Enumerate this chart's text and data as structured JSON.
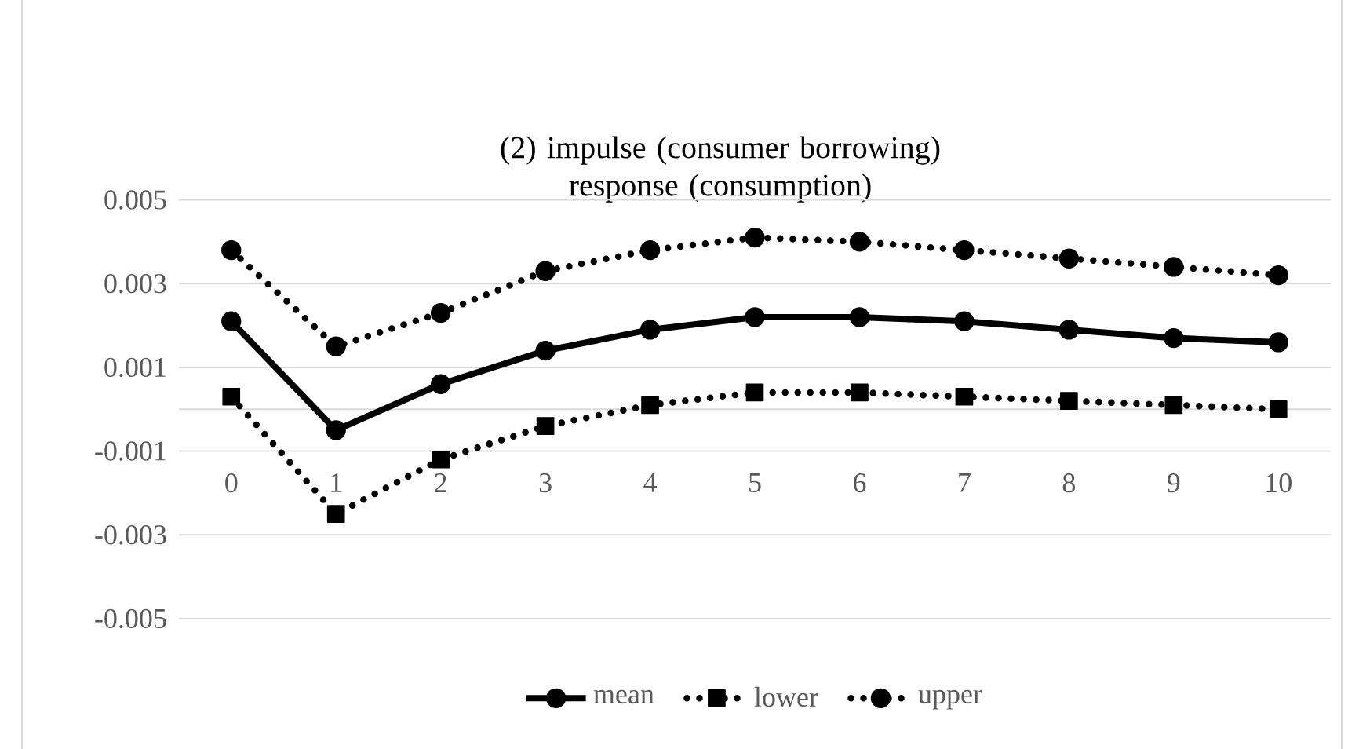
{
  "chart_data": {
    "type": "line",
    "title": "(2) impulse (consumer borrowing) response (consumption)",
    "categories": [
      "0",
      "1",
      "2",
      "3",
      "4",
      "5",
      "6",
      "7",
      "8",
      "9",
      "10"
    ],
    "series": [
      {
        "name": "mean",
        "color": "#000000",
        "line_style": "solid",
        "marker": "circle",
        "values": [
          0.0021,
          -0.0005,
          0.0006,
          0.0014,
          0.0019,
          0.0022,
          0.0022,
          0.0021,
          0.0019,
          0.0017,
          0.0016
        ]
      },
      {
        "name": "lower",
        "color": "#000000",
        "line_style": "dotted",
        "marker": "square",
        "values": [
          0.0003,
          -0.0025,
          -0.0012,
          -0.0004,
          0.0001,
          0.0004,
          0.0004,
          0.0003,
          0.0002,
          0.0001,
          0.0
        ]
      },
      {
        "name": "upper",
        "color": "#000000",
        "line_style": "dotted",
        "marker": "circle",
        "values": [
          0.0038,
          0.0015,
          0.0023,
          0.0033,
          0.0038,
          0.0041,
          0.004,
          0.0038,
          0.0036,
          0.0034,
          0.0032
        ]
      }
    ],
    "ylim": [
      -0.005,
      0.005
    ],
    "yticks": [
      -0.005,
      -0.003,
      -0.001,
      0.001,
      0.003,
      0.005
    ],
    "grid": "y",
    "legend": "bottom"
  }
}
